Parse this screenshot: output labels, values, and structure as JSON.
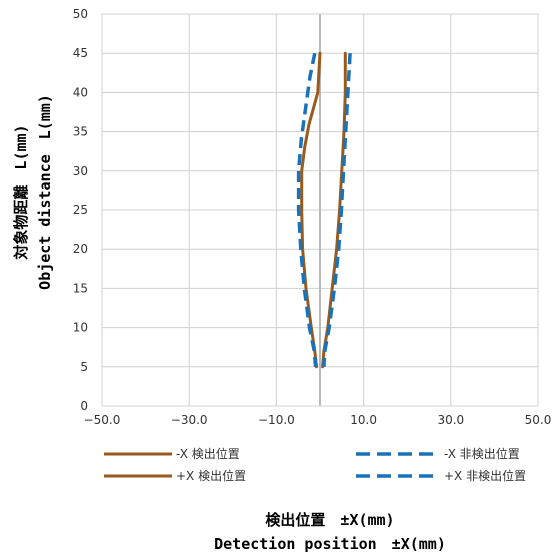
{
  "chart_data": {
    "type": "line",
    "xlabel_ja": "検出位置　±X(mm)",
    "xlabel_en": "Detection position　±X(mm)",
    "ylabel_ja": "対象物距離　L(mm)",
    "ylabel_en": "Object distance　L(mm)",
    "xlim": [
      -50,
      50
    ],
    "ylim": [
      0,
      50
    ],
    "x_ticks": [
      -50,
      -30,
      -10,
      10,
      30,
      50
    ],
    "x_tick_labels": [
      "−50.0",
      "−30.0",
      "−10.0",
      "10.0",
      "30.0",
      "50.0"
    ],
    "y_ticks": [
      0,
      5,
      10,
      15,
      20,
      25,
      30,
      35,
      40,
      45,
      50
    ],
    "grid": true,
    "center_line_x": 0,
    "series": [
      {
        "name": "-X  検出位置",
        "color": "#9a5a1c",
        "dash": false,
        "points": [
          [
            0.0,
            45
          ],
          [
            -0.2,
            43
          ],
          [
            -0.5,
            40
          ],
          [
            -1.5,
            38
          ],
          [
            -2.5,
            36
          ],
          [
            -3.5,
            33
          ],
          [
            -4.2,
            30
          ],
          [
            -4.2,
            25
          ],
          [
            -4.0,
            20
          ],
          [
            -3.2,
            15
          ],
          [
            -2.0,
            10
          ],
          [
            -1.2,
            7
          ],
          [
            -0.8,
            5
          ]
        ]
      },
      {
        "name": "+X  検出位置",
        "color": "#9a5a1c",
        "dash": false,
        "points": [
          [
            5.8,
            45
          ],
          [
            5.8,
            40
          ],
          [
            5.5,
            35
          ],
          [
            5.0,
            30
          ],
          [
            4.5,
            25
          ],
          [
            3.8,
            20
          ],
          [
            2.8,
            15
          ],
          [
            1.8,
            10
          ],
          [
            0.9,
            7
          ],
          [
            0.6,
            5
          ]
        ]
      },
      {
        "name": "-X  非検出位置",
        "color": "#1a72b8",
        "dash": true,
        "points": [
          [
            -1.2,
            45
          ],
          [
            -2.3,
            42
          ],
          [
            -3.3,
            38
          ],
          [
            -4.3,
            34
          ],
          [
            -4.9,
            30
          ],
          [
            -4.9,
            25
          ],
          [
            -4.4,
            20
          ],
          [
            -3.6,
            15
          ],
          [
            -2.4,
            10
          ],
          [
            -1.3,
            7
          ],
          [
            -1.0,
            5
          ]
        ]
      },
      {
        "name": "+X  非検出位置",
        "color": "#1a72b8",
        "dash": true,
        "points": [
          [
            6.9,
            45
          ],
          [
            6.4,
            40
          ],
          [
            5.9,
            35
          ],
          [
            5.4,
            30
          ],
          [
            4.9,
            25
          ],
          [
            4.3,
            20
          ],
          [
            3.3,
            15
          ],
          [
            2.1,
            10
          ],
          [
            1.1,
            7
          ],
          [
            0.9,
            5
          ]
        ]
      }
    ],
    "legend_placement": "bottom"
  }
}
